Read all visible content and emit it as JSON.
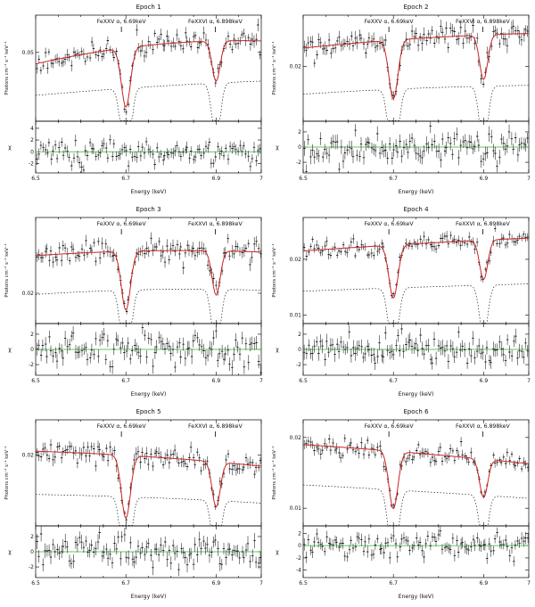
{
  "figure": {
    "xlabel": "Energy (keV)",
    "ylabel_top": "Photons cm⁻² s⁻¹ keV⁻¹",
    "ylabel_bottom": "χ",
    "x_range": [
      6.5,
      7.0
    ],
    "x_ticks": [
      6.5,
      6.7,
      6.9,
      7.0
    ],
    "x_tick_labels": [
      "6.5",
      "6.7",
      "6.9",
      "7"
    ],
    "x_minor_step": 0.05,
    "annotations": [
      {
        "label": "FeXXV α, 6.69keV",
        "x": 6.69
      },
      {
        "label": "FeXXVI α, 6.898keV",
        "x": 6.898
      }
    ],
    "colors": {
      "data": "#1a1a1a",
      "model": "#cc2222",
      "dotted": "#222222",
      "zero_line": "#2db52d",
      "axis": "#000000"
    }
  },
  "chart_data": [
    {
      "title": "Epoch 1",
      "type": "line",
      "top": {
        "y_range": [
          0.026,
          0.063
        ],
        "y_ticks": [
          {
            "v": 0.05,
            "l": "0.05"
          }
        ],
        "cont": [
          0.046,
          0.0525,
          0.054
        ],
        "dotted": [
          0.035,
          0.038,
          0.04
        ],
        "dips": [
          {
            "c": 6.7,
            "w": 0.01,
            "d": 0.4
          },
          {
            "c": 6.9,
            "w": 0.009,
            "d": 0.26
          }
        ],
        "dotted_dip_scale": 2.0,
        "noise": 0.035
      },
      "bottom": {
        "y_range": [
          -3.6,
          5.2
        ],
        "y_ticks": [
          {
            "v": 4,
            "l": "4"
          },
          {
            "v": 2,
            "l": "2"
          },
          {
            "v": 0,
            "l": "0"
          },
          {
            "v": -2,
            "l": "-2"
          }
        ]
      }
    },
    {
      "title": "Epoch 2",
      "type": "line",
      "top": {
        "y_range": [
          0.0125,
          0.027
        ],
        "y_ticks": [
          {
            "v": 0.02,
            "l": "0.02"
          }
        ],
        "cont": [
          0.0225,
          0.0238,
          0.0245
        ],
        "dotted": [
          0.0162,
          0.017,
          0.0174
        ],
        "dips": [
          {
            "c": 6.7,
            "w": 0.01,
            "d": 0.34
          },
          {
            "c": 6.9,
            "w": 0.009,
            "d": 0.25
          }
        ],
        "dotted_dip_scale": 2.0,
        "noise": 0.035
      },
      "bottom": {
        "y_range": [
          -3.4,
          3.4
        ],
        "y_ticks": [
          {
            "v": 2,
            "l": "2"
          },
          {
            "v": 0,
            "l": "0"
          },
          {
            "v": -2,
            "l": "-2"
          }
        ]
      }
    },
    {
      "title": "Epoch 3",
      "type": "line",
      "top": {
        "y_range": [
          0.015,
          0.0325
        ],
        "y_ticks": [
          {
            "v": 0.02,
            "l": "0.02"
          }
        ],
        "cont": [
          0.0262,
          0.027,
          0.0268
        ],
        "dotted": [
          0.0198,
          0.0206,
          0.0205
        ],
        "dips": [
          {
            "c": 6.7,
            "w": 0.01,
            "d": 0.36
          },
          {
            "c": 6.9,
            "w": 0.009,
            "d": 0.27
          }
        ],
        "dotted_dip_scale": 2.0,
        "noise": 0.035
      },
      "bottom": {
        "y_range": [
          -3.4,
          3.4
        ],
        "y_ticks": [
          {
            "v": 2,
            "l": "2"
          },
          {
            "v": 0,
            "l": "0"
          },
          {
            "v": -2,
            "l": "-2"
          }
        ]
      }
    },
    {
      "title": "Epoch 4",
      "type": "line",
      "top": {
        "y_range": [
          0.0085,
          0.0275
        ],
        "y_ticks": [
          {
            "v": 0.02,
            "l": "0.02"
          },
          {
            "v": 0.01,
            "l": "0.01"
          }
        ],
        "cont": [
          0.0215,
          0.0228,
          0.0238
        ],
        "dotted": [
          0.0143,
          0.015,
          0.0156
        ],
        "dips": [
          {
            "c": 6.7,
            "w": 0.01,
            "d": 0.42
          },
          {
            "c": 6.9,
            "w": 0.009,
            "d": 0.3
          }
        ],
        "dotted_dip_scale": 2.0,
        "noise": 0.035
      },
      "bottom": {
        "y_range": [
          -3.4,
          3.4
        ],
        "y_ticks": [
          {
            "v": 2,
            "l": "2"
          },
          {
            "v": 0,
            "l": "0"
          },
          {
            "v": -2,
            "l": "-2"
          }
        ]
      }
    },
    {
      "title": "Epoch 5",
      "type": "line",
      "top": {
        "y_range": [
          0.011,
          0.0245
        ],
        "y_ticks": [
          {
            "v": 0.02,
            "l": "0.02"
          }
        ],
        "cont": [
          0.0205,
          0.0198,
          0.0186
        ],
        "dotted": [
          0.015,
          0.0146,
          0.0139
        ],
        "dips": [
          {
            "c": 6.7,
            "w": 0.01,
            "d": 0.4
          },
          {
            "c": 6.9,
            "w": 0.009,
            "d": 0.3
          }
        ],
        "dotted_dip_scale": 2.0,
        "noise": 0.035
      },
      "bottom": {
        "y_range": [
          -3.4,
          3.4
        ],
        "y_ticks": [
          {
            "v": 2,
            "l": "2"
          },
          {
            "v": 0,
            "l": "0"
          },
          {
            "v": -2,
            "l": "-2"
          }
        ]
      }
    },
    {
      "title": "Epoch 6",
      "type": "line",
      "top": {
        "y_range": [
          0.0075,
          0.0225
        ],
        "y_ticks": [
          {
            "v": 0.02,
            "l": "0.02"
          },
          {
            "v": 0.01,
            "l": "0.01"
          }
        ],
        "cont": [
          0.019,
          0.0178,
          0.0163
        ],
        "dotted": [
          0.0133,
          0.0124,
          0.0114
        ],
        "dips": [
          {
            "c": 6.7,
            "w": 0.01,
            "d": 0.45
          },
          {
            "c": 6.9,
            "w": 0.009,
            "d": 0.32
          }
        ],
        "dotted_dip_scale": 2.0,
        "noise": 0.035
      },
      "bottom": {
        "y_range": [
          -5.2,
          3.2
        ],
        "y_ticks": [
          {
            "v": 2,
            "l": "2"
          },
          {
            "v": 0,
            "l": "0"
          },
          {
            "v": -2,
            "l": "-2"
          },
          {
            "v": -4,
            "l": "-4"
          }
        ]
      }
    }
  ]
}
